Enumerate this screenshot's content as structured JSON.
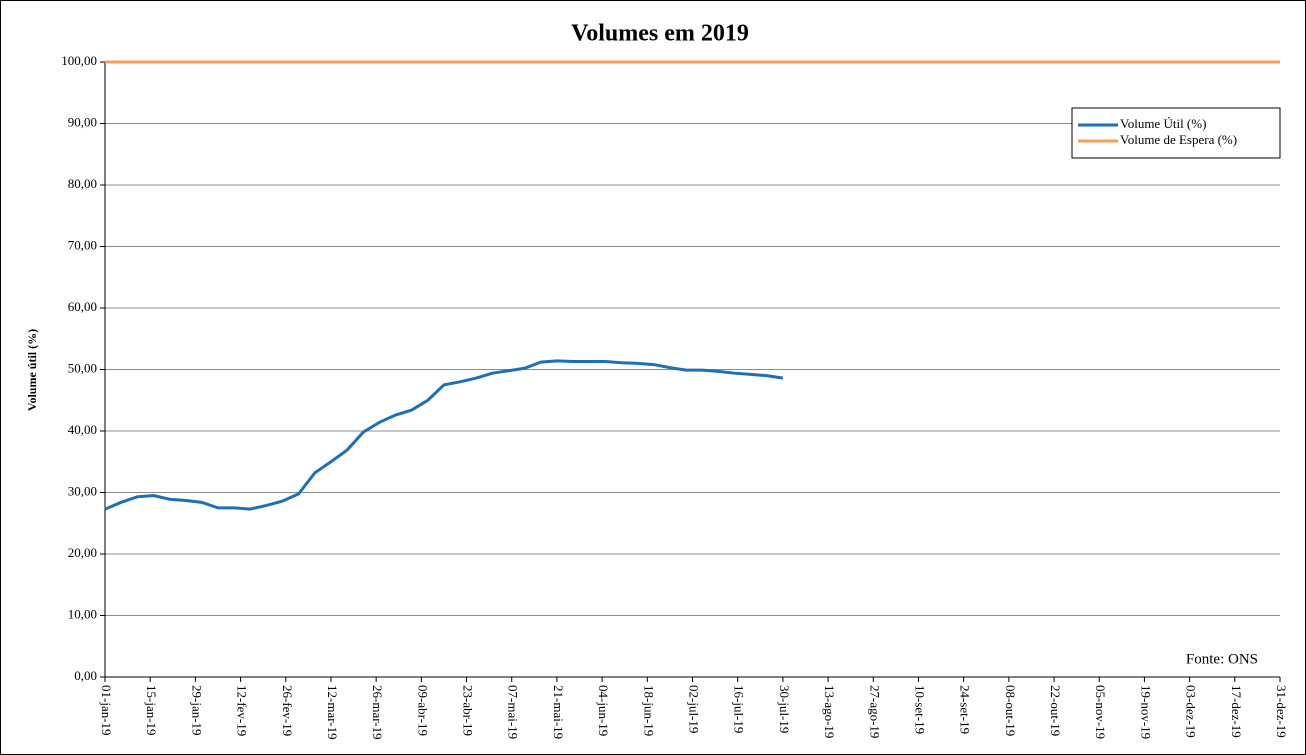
{
  "chart_data": {
    "type": "line",
    "title": "Volumes em 2019",
    "ylabel": "Volume útil (%)",
    "annotation": "Fonte: ONS",
    "xlim": [
      "2019-01-01",
      "2019-12-31"
    ],
    "xticks": [
      {
        "value": "2019-01-01",
        "label": "01-jan-19"
      },
      {
        "value": "2019-01-15",
        "label": "15-jan-19"
      },
      {
        "value": "2019-01-29",
        "label": "29-jan-19"
      },
      {
        "value": "2019-02-12",
        "label": "12-fev-19"
      },
      {
        "value": "2019-02-26",
        "label": "26-fev-19"
      },
      {
        "value": "2019-03-12",
        "label": "12-mar-19"
      },
      {
        "value": "2019-03-26",
        "label": "26-mar-19"
      },
      {
        "value": "2019-04-09",
        "label": "09-abr-19"
      },
      {
        "value": "2019-04-23",
        "label": "23-abr-19"
      },
      {
        "value": "2019-05-07",
        "label": "07-mai-19"
      },
      {
        "value": "2019-05-21",
        "label": "21-mai-19"
      },
      {
        "value": "2019-06-04",
        "label": "04-jun-19"
      },
      {
        "value": "2019-06-18",
        "label": "18-jun-19"
      },
      {
        "value": "2019-07-02",
        "label": "02-jul-19"
      },
      {
        "value": "2019-07-16",
        "label": "16-jul-19"
      },
      {
        "value": "2019-07-30",
        "label": "30-jul-19"
      },
      {
        "value": "2019-08-13",
        "label": "13-ago-19"
      },
      {
        "value": "2019-08-27",
        "label": "27-ago-19"
      },
      {
        "value": "2019-09-10",
        "label": "10-set-19"
      },
      {
        "value": "2019-09-24",
        "label": "24-set-19"
      },
      {
        "value": "2019-10-08",
        "label": "08-out-19"
      },
      {
        "value": "2019-10-22",
        "label": "22-out-19"
      },
      {
        "value": "2019-11-05",
        "label": "05-nov-19"
      },
      {
        "value": "2019-11-19",
        "label": "19-nov-19"
      },
      {
        "value": "2019-12-03",
        "label": "03-dez-19"
      },
      {
        "value": "2019-12-17",
        "label": "17-dez-19"
      },
      {
        "value": "2019-12-31",
        "label": "31-dez-19"
      }
    ],
    "ylim": [
      0,
      100
    ],
    "yticks": [
      {
        "value": 0,
        "label": "0,00"
      },
      {
        "value": 10,
        "label": "10,00"
      },
      {
        "value": 20,
        "label": "20,00"
      },
      {
        "value": 30,
        "label": "30,00"
      },
      {
        "value": 40,
        "label": "40,00"
      },
      {
        "value": 50,
        "label": "50,00"
      },
      {
        "value": 60,
        "label": "60,00"
      },
      {
        "value": 70,
        "label": "70,00"
      },
      {
        "value": 80,
        "label": "80,00"
      },
      {
        "value": 90,
        "label": "90,00"
      },
      {
        "value": 100,
        "label": "100,00"
      }
    ],
    "grid": true,
    "legend": "upper right",
    "series": [
      {
        "name": "Volume Útil (%)",
        "color": "#1f6fb5",
        "x": [
          "2019-01-01",
          "2019-01-06",
          "2019-01-11",
          "2019-01-16",
          "2019-01-21",
          "2019-01-26",
          "2019-01-31",
          "2019-02-05",
          "2019-02-10",
          "2019-02-15",
          "2019-02-20",
          "2019-02-25",
          "2019-03-02",
          "2019-03-07",
          "2019-03-12",
          "2019-03-17",
          "2019-03-22",
          "2019-03-27",
          "2019-04-01",
          "2019-04-06",
          "2019-04-11",
          "2019-04-16",
          "2019-04-21",
          "2019-04-26",
          "2019-05-01",
          "2019-05-06",
          "2019-05-11",
          "2019-05-16",
          "2019-05-21",
          "2019-05-26",
          "2019-05-31",
          "2019-06-05",
          "2019-06-10",
          "2019-06-15",
          "2019-06-20",
          "2019-06-25",
          "2019-06-30",
          "2019-07-05",
          "2019-07-10",
          "2019-07-15",
          "2019-07-20",
          "2019-07-25",
          "2019-07-30"
        ],
        "values": [
          27.3,
          28.4,
          29.3,
          29.5,
          28.9,
          28.7,
          28.4,
          27.5,
          27.5,
          27.3,
          27.9,
          28.6,
          29.8,
          33.2,
          35.0,
          36.9,
          39.8,
          41.4,
          42.6,
          43.4,
          45.0,
          47.5,
          48.0,
          48.6,
          49.4,
          49.8,
          50.2,
          51.2,
          51.4,
          51.3,
          51.3,
          51.3,
          51.1,
          51.0,
          50.8,
          50.3,
          49.9,
          49.9,
          49.7,
          49.4,
          49.2,
          49.0,
          48.6
        ]
      },
      {
        "name": "Volume de Espera (%)",
        "color": "#f5a05a",
        "x": [
          "2019-01-01",
          "2019-12-31"
        ],
        "values": [
          100,
          100
        ]
      }
    ]
  }
}
